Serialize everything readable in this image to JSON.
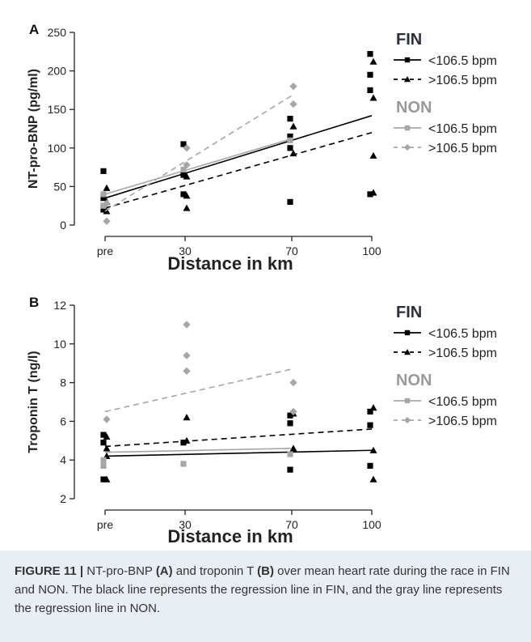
{
  "chart_data": [
    {
      "panel": "A",
      "type": "scatter",
      "xlabel": "Distance in km",
      "ylabel": "NT-pro-BNP (pg/ml)",
      "categories": [
        "pre",
        "30",
        "70",
        "100"
      ],
      "ylim": [
        0,
        250
      ],
      "yticks": [
        0,
        50,
        100,
        150,
        200,
        250
      ],
      "legend": {
        "groups": [
          {
            "title": "FIN",
            "color": "#2b3038",
            "entries": [
              {
                "label": "<106.5 bpm",
                "style": "solid",
                "marker": "square",
                "color": "#000000"
              },
              {
                "label": ">106.5 bpm",
                "style": "dashed",
                "marker": "triangle",
                "color": "#000000"
              }
            ]
          },
          {
            "title": "NON",
            "color": "#9a9a9a",
            "entries": [
              {
                "label": "<106.5 bpm",
                "style": "solid",
                "marker": "square",
                "color": "#a6a6a6"
              },
              {
                "label": ">106.5 bpm",
                "style": "dashed",
                "marker": "diamond",
                "color": "#a6a6a6"
              }
            ]
          }
        ]
      },
      "series": [
        {
          "name": "FIN <106.5 bpm",
          "marker": "square",
          "color": "#000000",
          "points": [
            [
              "pre",
              70
            ],
            [
              "pre",
              35
            ],
            [
              "pre",
              25
            ],
            [
              "pre",
              20
            ],
            [
              "30",
              105
            ],
            [
              "30",
              65
            ],
            [
              "30",
              40
            ],
            [
              "70",
              138
            ],
            [
              "70",
              115
            ],
            [
              "70",
              100
            ],
            [
              "70",
              30
            ],
            [
              "100",
              222
            ],
            [
              "100",
              195
            ],
            [
              "100",
              175
            ],
            [
              "100",
              40
            ]
          ],
          "fit": [
            [
              "pre",
              35
            ],
            [
              "100",
              142
            ]
          ]
        },
        {
          "name": "FIN >106.5 bpm",
          "marker": "triangle",
          "color": "#000000",
          "points": [
            [
              "pre",
              48
            ],
            [
              "pre",
              30
            ],
            [
              "pre",
              18
            ],
            [
              "30",
              63
            ],
            [
              "30",
              38
            ],
            [
              "30",
              22
            ],
            [
              "70",
              128
            ],
            [
              "70",
              93
            ],
            [
              "100",
              212
            ],
            [
              "100",
              165
            ],
            [
              "100",
              90
            ],
            [
              "100",
              42
            ]
          ],
          "fit": [
            [
              "pre",
              22
            ],
            [
              "100",
              120
            ]
          ]
        },
        {
          "name": "NON <106.5 bpm",
          "marker": "square",
          "color": "#a6a6a6",
          "points": [
            [
              "pre",
              40
            ],
            [
              "pre",
              25
            ],
            [
              "30",
              72
            ],
            [
              "70",
              110
            ]
          ],
          "fit": [
            [
              "pre",
              40
            ],
            [
              "70",
              112
            ]
          ]
        },
        {
          "name": "NON >106.5 bpm",
          "marker": "diamond",
          "color": "#a6a6a6",
          "points": [
            [
              "pre",
              5
            ],
            [
              "pre",
              28
            ],
            [
              "30",
              100
            ],
            [
              "30",
              78
            ],
            [
              "70",
              180
            ],
            [
              "70",
              157
            ]
          ],
          "fit": [
            [
              "pre",
              18
            ],
            [
              "70",
              168
            ]
          ]
        }
      ]
    },
    {
      "panel": "B",
      "type": "scatter",
      "xlabel": "Distance in km",
      "ylabel": "Troponin T (ng/l)",
      "categories": [
        "pre",
        "30",
        "70",
        "100"
      ],
      "ylim": [
        2,
        12
      ],
      "yticks": [
        2,
        4,
        6,
        8,
        10,
        12
      ],
      "legend": {
        "groups": [
          {
            "title": "FIN",
            "color": "#2b3038",
            "entries": [
              {
                "label": "<106.5 bpm",
                "style": "solid",
                "marker": "square",
                "color": "#000000"
              },
              {
                "label": ">106.5 bpm",
                "style": "dashed",
                "marker": "triangle",
                "color": "#000000"
              }
            ]
          },
          {
            "title": "NON",
            "color": "#9a9a9a",
            "entries": [
              {
                "label": "<106.5 bpm",
                "style": "solid",
                "marker": "square",
                "color": "#a6a6a6"
              },
              {
                "label": ">106.5 bpm",
                "style": "dashed",
                "marker": "diamond",
                "color": "#a6a6a6"
              }
            ]
          }
        ]
      },
      "series": [
        {
          "name": "FIN <106.5 bpm",
          "marker": "square",
          "color": "#000000",
          "points": [
            [
              "pre",
              5.3
            ],
            [
              "pre",
              4.9
            ],
            [
              "pre",
              3.0
            ],
            [
              "30",
              4.9
            ],
            [
              "70",
              6.3
            ],
            [
              "70",
              5.9
            ],
            [
              "70",
              3.5
            ],
            [
              "100",
              6.5
            ],
            [
              "100",
              5.8
            ],
            [
              "100",
              3.7
            ]
          ],
          "fit": [
            [
              "pre",
              4.2
            ],
            [
              "100",
              4.5
            ]
          ]
        },
        {
          "name": "FIN >106.5 bpm",
          "marker": "triangle",
          "color": "#000000",
          "points": [
            [
              "pre",
              5.2
            ],
            [
              "pre",
              4.6
            ],
            [
              "pre",
              4.2
            ],
            [
              "pre",
              3.0
            ],
            [
              "30",
              6.2
            ],
            [
              "30",
              5.0
            ],
            [
              "70",
              6.4
            ],
            [
              "70",
              4.6
            ],
            [
              "100",
              6.7
            ],
            [
              "100",
              4.5
            ],
            [
              "100",
              3.0
            ]
          ],
          "fit": [
            [
              "pre",
              4.7
            ],
            [
              "100",
              5.6
            ]
          ]
        },
        {
          "name": "NON <106.5 bpm",
          "marker": "square",
          "color": "#a6a6a6",
          "points": [
            [
              "pre",
              4.0
            ],
            [
              "pre",
              3.7
            ],
            [
              "30",
              3.8
            ],
            [
              "70",
              4.3
            ]
          ],
          "fit": [
            [
              "pre",
              4.4
            ],
            [
              "70",
              4.6
            ]
          ]
        },
        {
          "name": "NON >106.5 bpm",
          "marker": "diamond",
          "color": "#a6a6a6",
          "points": [
            [
              "pre",
              6.1
            ],
            [
              "30",
              11.0
            ],
            [
              "30",
              9.4
            ],
            [
              "30",
              8.6
            ],
            [
              "70",
              8.0
            ],
            [
              "70",
              6.5
            ]
          ],
          "fit": [
            [
              "pre",
              6.5
            ],
            [
              "70",
              8.7
            ]
          ]
        }
      ]
    }
  ],
  "caption": {
    "label": "FIGURE 11 |",
    "part1": " NT-pro-BNP ",
    "a": "(A)",
    "part2": " and troponin T ",
    "b": "(B)",
    "part3": " over mean heart rate during the race in FIN and NON. The black line represents the regression line in FIN, and the gray line represents the regression line in NON."
  }
}
